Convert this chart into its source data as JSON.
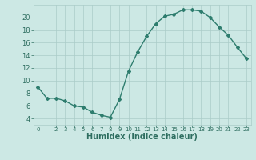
{
  "x": [
    0,
    1,
    2,
    3,
    4,
    5,
    6,
    7,
    8,
    9,
    10,
    11,
    12,
    13,
    14,
    15,
    16,
    17,
    18,
    19,
    20,
    21,
    22,
    23
  ],
  "y": [
    9.0,
    7.2,
    7.2,
    6.8,
    6.0,
    5.8,
    5.0,
    4.5,
    4.2,
    7.0,
    11.5,
    14.5,
    17.0,
    19.0,
    20.2,
    20.5,
    21.2,
    21.2,
    21.0,
    20.0,
    18.5,
    17.2,
    15.3,
    13.5
  ],
  "line_color": "#2e7d6e",
  "marker": "D",
  "marker_size": 2,
  "linewidth": 1.0,
  "bg_color": "#cce8e4",
  "grid_color": "#aaccc8",
  "xlabel": "Humidex (Indice chaleur)",
  "ylim": [
    3,
    22
  ],
  "xlim": [
    -0.5,
    23.5
  ],
  "yticks": [
    4,
    6,
    8,
    10,
    12,
    14,
    16,
    18,
    20
  ],
  "xticks": [
    0,
    2,
    3,
    4,
    5,
    6,
    7,
    8,
    9,
    10,
    11,
    12,
    13,
    14,
    15,
    16,
    17,
    18,
    19,
    20,
    21,
    22,
    23
  ],
  "tick_color": "#2e6e60",
  "label_color": "#2e6e60",
  "font_size": 6,
  "xlabel_fontsize": 7
}
